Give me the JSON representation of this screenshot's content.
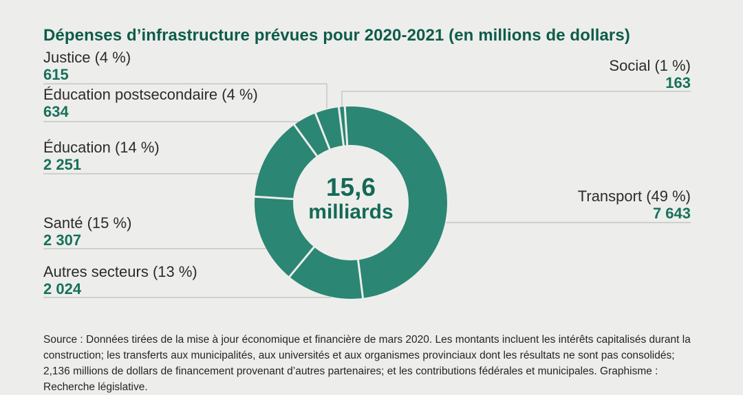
{
  "title": "Dépenses d’infrastructure prévues pour 2020-2021 (en millions de dollars)",
  "center": {
    "value": "15,6",
    "unit": "milliards"
  },
  "chart_data": {
    "type": "pie",
    "subtype": "donut",
    "title": "Dépenses d’infrastructure prévues pour 2020-2021",
    "unit": "millions de dollars",
    "total": "15,6 milliards",
    "start_angle_deg": -3.6,
    "segments": [
      {
        "label": "Transport",
        "pct": 49,
        "value": 7643,
        "value_display": "7 643"
      },
      {
        "label": "Autres secteurs",
        "pct": 13,
        "value": 2024,
        "value_display": "2 024"
      },
      {
        "label": "Santé",
        "pct": 15,
        "value": 2307,
        "value_display": "2 307"
      },
      {
        "label": "Éducation",
        "pct": 14,
        "value": 2251,
        "value_display": "2 251"
      },
      {
        "label": "Éducation postsecondaire",
        "pct": 4,
        "value": 634,
        "value_display": "634"
      },
      {
        "label": "Justice",
        "pct": 4,
        "value": 615,
        "value_display": "615"
      },
      {
        "label": "Social",
        "pct": 1,
        "value": 163,
        "value_display": "163"
      }
    ],
    "colors": {
      "segment": "#2b8673",
      "separator": "#edeeeb",
      "leader_line": "#bcbeba",
      "value_text": "#17705c",
      "label_text": "#2b2b2b",
      "title_text": "#0d5b4b",
      "center_text": "#156957",
      "background": "#edeeeb"
    },
    "legend_position": "callouts"
  },
  "callouts": {
    "justice": {
      "label": "Justice (4 %)",
      "value": "615"
    },
    "ed_postsec": {
      "label": "Éducation postsecondaire (4 %)",
      "value": "634"
    },
    "education": {
      "label": "Éducation (14 %)",
      "value": "2 251"
    },
    "sante": {
      "label": "Santé (15 %)",
      "value": "2 307"
    },
    "autres": {
      "label": "Autres secteurs (13 %)",
      "value": "2 024"
    },
    "social": {
      "label": "Social (1 %)",
      "value": "163"
    },
    "transport": {
      "label": "Transport (49 %)",
      "value": "7 643"
    }
  },
  "source": "Source : Données tirées de la mise à jour économique et financière de mars 2020. Les montants incluent les intérêts capitalisés durant la construction; les transferts aux municipalités, aux universités et aux organismes provinciaux dont les résultats ne sont pas consolidés; 2,136 millions de dollars de financement provenant d’autres partenaires; et les contributions fédérales et municipales. Graphisme : Recherche législative."
}
